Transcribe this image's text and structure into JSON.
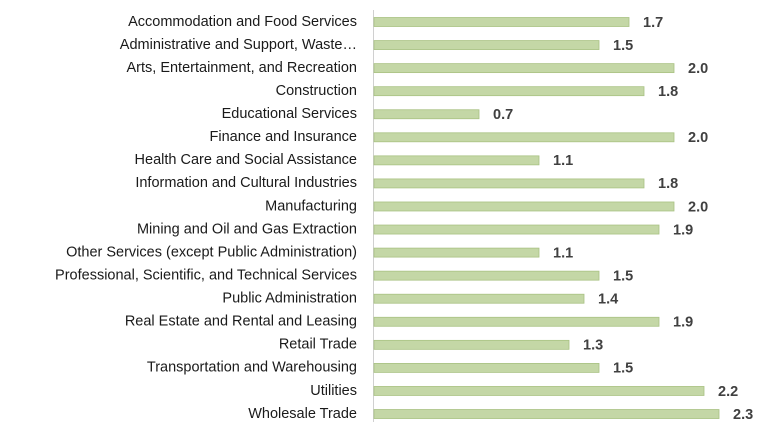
{
  "chart_data": {
    "type": "bar",
    "orientation": "horizontal",
    "categories": [
      "Accommodation and Food Services",
      "Administrative and Support, Waste…",
      "Arts, Entertainment, and Recreation",
      "Construction",
      "Educational Services",
      "Finance and Insurance",
      "Health Care and Social Assistance",
      "Information and Cultural Industries",
      "Manufacturing",
      "Mining and Oil and Gas Extraction",
      "Other Services (except Public Administration)",
      "Professional, Scientific, and Technical Services",
      "Public Administration",
      "Real Estate and Rental and Leasing",
      "Retail Trade",
      "Transportation and Warehousing",
      "Utilities",
      "Wholesale Trade"
    ],
    "values": [
      1.7,
      1.5,
      2.0,
      1.8,
      0.7,
      2.0,
      1.1,
      1.8,
      2.0,
      1.9,
      1.1,
      1.5,
      1.4,
      1.9,
      1.3,
      1.5,
      2.2,
      2.3
    ],
    "value_labels": [
      "1.7",
      "1.5",
      "2.0",
      "1.8",
      "0.7",
      "2.0",
      "1.1",
      "1.8",
      "2.0",
      "1.9",
      "1.1",
      "1.5",
      "1.4",
      "1.9",
      "1.3",
      "1.5",
      "2.2",
      "2.3"
    ],
    "color": "#c4d7a6",
    "xlim": [
      0,
      2.5
    ]
  }
}
